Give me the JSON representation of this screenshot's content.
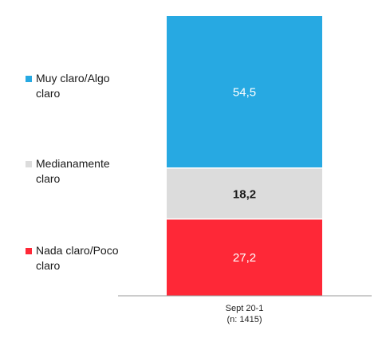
{
  "chart_data": {
    "type": "bar",
    "stacked": true,
    "orientation": "vertical",
    "categories": [
      "Sept 20-1\n(n: 1415)"
    ],
    "series": [
      {
        "name": "Nada claro/Poco claro",
        "values": [
          27.2
        ],
        "display": "27,2",
        "color": "#fe2837",
        "label_color": "#ffffff"
      },
      {
        "name": "Medianamente claro",
        "values": [
          18.2
        ],
        "display": "18,2",
        "color": "#dcdcdc",
        "label_color": "#1a1a1a"
      },
      {
        "name": "Muy claro/Algo claro",
        "values": [
          54.5
        ],
        "display": "54,5",
        "color": "#27a9e2",
        "label_color": "#ffffff"
      }
    ],
    "legend_position": "left",
    "ylim": [
      0,
      99.9
    ],
    "grid": false,
    "title": "",
    "xlabel": "",
    "ylabel": ""
  }
}
